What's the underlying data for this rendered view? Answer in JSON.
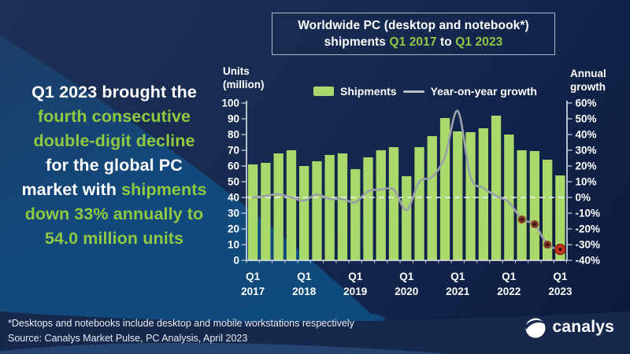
{
  "colors": {
    "background_navy": "#16294e",
    "swoosh_blue": "#0f4a7d",
    "accent_green": "#8fc841",
    "bar_green": "#a9d86b",
    "line_gray": "#9aa1a8",
    "marker_dark_red": "#7e3727",
    "marker_bright_red": "#c63524",
    "axis_white": "#dfe5ee"
  },
  "title": {
    "line1": "Worldwide PC (desktop and notebook*)",
    "line2_segments": [
      {
        "t": "shipments ",
        "g": false
      },
      {
        "t": "Q1 2017",
        "g": true
      },
      {
        "t": " to ",
        "g": false
      },
      {
        "t": "Q1 2023",
        "g": true
      }
    ]
  },
  "headline": {
    "lines": [
      [
        {
          "t": "Q1 2023 brought the",
          "g": false
        }
      ],
      [
        {
          "t": "fourth consecutive",
          "g": true
        }
      ],
      [
        {
          "t": "double-digit decline",
          "g": true
        }
      ],
      [
        {
          "t": "for the global PC",
          "g": false
        }
      ],
      [
        {
          "t": "market with ",
          "g": false
        },
        {
          "t": "shipments",
          "g": true
        }
      ],
      [
        {
          "t": "down 33% annually to",
          "g": true
        }
      ],
      [
        {
          "t": "54.0 million units",
          "g": true
        }
      ]
    ]
  },
  "legend": {
    "shipments": "Shipments",
    "growth": "Year-on-year growth"
  },
  "axes": {
    "left_label_1": "Units",
    "left_label_2": "(million)",
    "right_label_1": "Annual",
    "right_label_2": "growth",
    "left_ticks": [
      100,
      90,
      80,
      70,
      60,
      50,
      40,
      30,
      20,
      10,
      0
    ],
    "right_ticks": [
      "60%",
      "50%",
      "40%",
      "30%",
      "20%",
      "10%",
      "0%",
      "-10%",
      "-20%",
      "-30%",
      "-40%"
    ]
  },
  "chart_data": {
    "type": "bar+line",
    "categories": [
      "Q1 2017",
      "Q2 2017",
      "Q3 2017",
      "Q4 2017",
      "Q1 2018",
      "Q2 2018",
      "Q3 2018",
      "Q4 2018",
      "Q1 2019",
      "Q2 2019",
      "Q3 2019",
      "Q4 2019",
      "Q1 2020",
      "Q2 2020",
      "Q3 2020",
      "Q4 2020",
      "Q1 2021",
      "Q2 2021",
      "Q3 2021",
      "Q4 2021",
      "Q1 2022",
      "Q2 2022",
      "Q3 2022",
      "Q4 2022",
      "Q1 2023"
    ],
    "series": [
      {
        "name": "Shipments",
        "type": "bar",
        "axis": "left",
        "values": [
          61,
          62,
          68,
          70,
          60,
          63,
          67,
          68,
          58,
          65.5,
          70,
          72,
          53.5,
          72,
          79,
          90.5,
          82,
          81.5,
          84,
          92,
          80,
          70,
          69.5,
          64,
          54
        ]
      },
      {
        "name": "Year-on-year growth",
        "type": "line",
        "axis": "right",
        "values": [
          0,
          1,
          2,
          0,
          -2,
          2,
          -1,
          -1,
          -3,
          4,
          5,
          5,
          -8,
          10,
          13,
          26,
          55,
          13,
          6,
          1,
          -3,
          -14,
          -17,
          -30,
          -33
        ]
      }
    ],
    "left_axis": {
      "label": "Units (million)",
      "min": 0,
      "max": 100,
      "step": 10
    },
    "right_axis": {
      "label": "Annual growth",
      "min": -40,
      "max": 60,
      "step": 10,
      "unit": "%"
    },
    "zero_growth_gridline": "dashed",
    "highlight_points": {
      "small": [
        21,
        22,
        23
      ],
      "large": [
        24
      ]
    },
    "x_tick_labels": [
      {
        "index": 0,
        "top": "Q1",
        "bottom": "2017"
      },
      {
        "index": 4,
        "top": "Q1",
        "bottom": "2018"
      },
      {
        "index": 8,
        "top": "Q1",
        "bottom": "2019"
      },
      {
        "index": 12,
        "top": "Q1",
        "bottom": "2020"
      },
      {
        "index": 16,
        "top": "Q1",
        "bottom": "2021"
      },
      {
        "index": 20,
        "top": "Q1",
        "bottom": "2022"
      },
      {
        "index": 24,
        "top": "Q1",
        "bottom": "2023"
      }
    ]
  },
  "footnotes": {
    "note": "*Desktops and notebooks include desktop and mobile workstations respectively",
    "source": "Source: Canalys Market Pulse, PC Analysis, April 2023"
  },
  "logo": {
    "text": "canalys"
  }
}
